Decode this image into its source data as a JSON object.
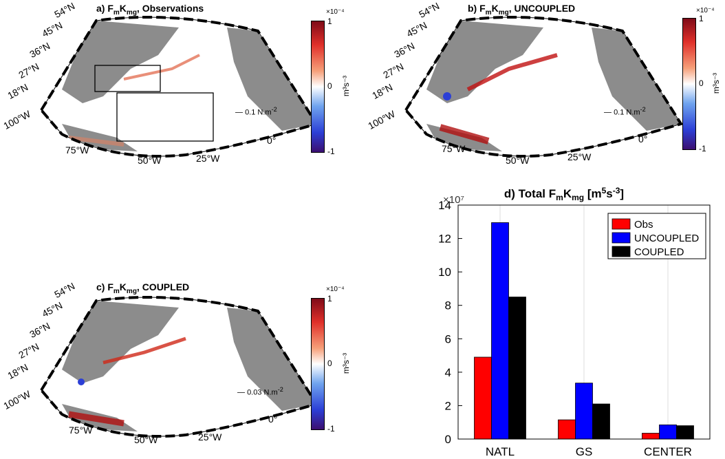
{
  "panels": {
    "a": {
      "title": "a) F",
      "sub1": "m",
      "mid": "K",
      "sub2": "mg",
      "rest": ", Observations",
      "scale_label": "0.1 N.m",
      "scale_exp": "-2"
    },
    "b": {
      "title": "b) F",
      "sub1": "m",
      "mid": "K",
      "sub2": "mg",
      "rest": ", UNCOUPLED",
      "scale_label": "0.1 N.m",
      "scale_exp": "-2"
    },
    "c": {
      "title": "c) F",
      "sub1": "m",
      "mid": "K",
      "sub2": "mg",
      "rest": ", COUPLED",
      "scale_label": "0.03 N.m",
      "scale_exp": "-2"
    }
  },
  "map_labels": {
    "lats": [
      "54°N",
      "45°N",
      "36°N",
      "27°N",
      "18°N",
      "100°W"
    ],
    "lons": [
      "75°W",
      "50°W",
      "25°W",
      "0°"
    ]
  },
  "colorbar": {
    "exponent": "×10⁻⁴",
    "top": "1",
    "mid": "0",
    "bottom": "-1",
    "unit": "m³s⁻³",
    "colors": [
      "#3b0f70",
      "#2c3fd6",
      "#6fa3ee",
      "#ffffff",
      "#f6a07a",
      "#e0302a",
      "#7f0b18"
    ]
  },
  "chart_data": {
    "type": "bar",
    "title": "d) Total F_mK_mg [m⁵s⁻³]",
    "title_parts": {
      "lead": "d) Total F",
      "s1": "m",
      "k": "K",
      "s2": "mg",
      "unit": " [m",
      "sup1": "5",
      "unit2": "s",
      "sup2": "-3",
      "close": "]"
    },
    "y_exponent": "×10⁷",
    "categories": [
      "NATL",
      "GS",
      "CENTER"
    ],
    "series": [
      {
        "name": "Obs",
        "color": "#ff0000",
        "values": [
          4.9,
          1.15,
          0.35
        ]
      },
      {
        "name": "UNCOUPLED",
        "color": "#0000ff",
        "values": [
          12.95,
          3.35,
          0.85
        ]
      },
      {
        "name": "COUPLED",
        "color": "#000000",
        "values": [
          8.5,
          2.1,
          0.8
        ]
      }
    ],
    "ylim": [
      0,
      14
    ],
    "yticks": [
      0,
      2,
      4,
      6,
      8,
      10,
      12,
      14
    ],
    "legend": "top-right",
    "grid": "vertical"
  }
}
